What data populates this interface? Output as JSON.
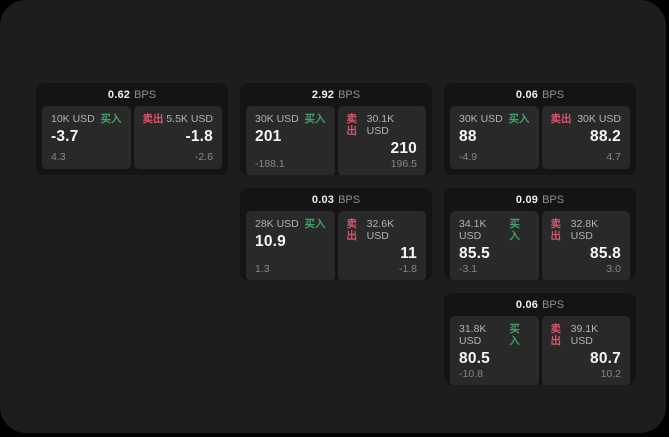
{
  "colors": {
    "buy": "#43a066",
    "sell": "#d5566e",
    "screen_bg": "#1d1d1e",
    "card_bg": "#141415",
    "panel_bg": "#29292a"
  },
  "bps_unit": "BPS",
  "buy_label": "买入",
  "sell_label": "卖出",
  "cards": [
    {
      "bps_value": "0.62",
      "buy": {
        "amount": "10K USD",
        "price": "-3.7",
        "delta": "4.3"
      },
      "sell": {
        "amount": "5.5K USD",
        "price": "-1.8",
        "delta": "-2.6"
      }
    },
    {
      "bps_value": "2.92",
      "buy": {
        "amount": "30K USD",
        "price": "201",
        "delta": "-188.1"
      },
      "sell": {
        "amount": "30.1K USD",
        "price": "210",
        "delta": "196.5"
      }
    },
    {
      "bps_value": "0.06",
      "buy": {
        "amount": "30K USD",
        "price": "88",
        "delta": "-4.9"
      },
      "sell": {
        "amount": "30K USD",
        "price": "88.2",
        "delta": "4.7"
      }
    },
    {
      "bps_value": "0.03",
      "buy": {
        "amount": "28K USD",
        "price": "10.9",
        "delta": "1.3"
      },
      "sell": {
        "amount": "32.6K USD",
        "price": "11",
        "delta": "-1.8"
      }
    },
    {
      "bps_value": "0.09",
      "buy": {
        "amount": "34.1K USD",
        "price": "85.5",
        "delta": "-3.1"
      },
      "sell": {
        "amount": "32.8K USD",
        "price": "85.8",
        "delta": "3.0"
      }
    },
    {
      "bps_value": "0.06",
      "buy": {
        "amount": "31.8K USD",
        "price": "80.5",
        "delta": "-10.8"
      },
      "sell": {
        "amount": "39.1K USD",
        "price": "80.7",
        "delta": "10.2"
      }
    }
  ]
}
